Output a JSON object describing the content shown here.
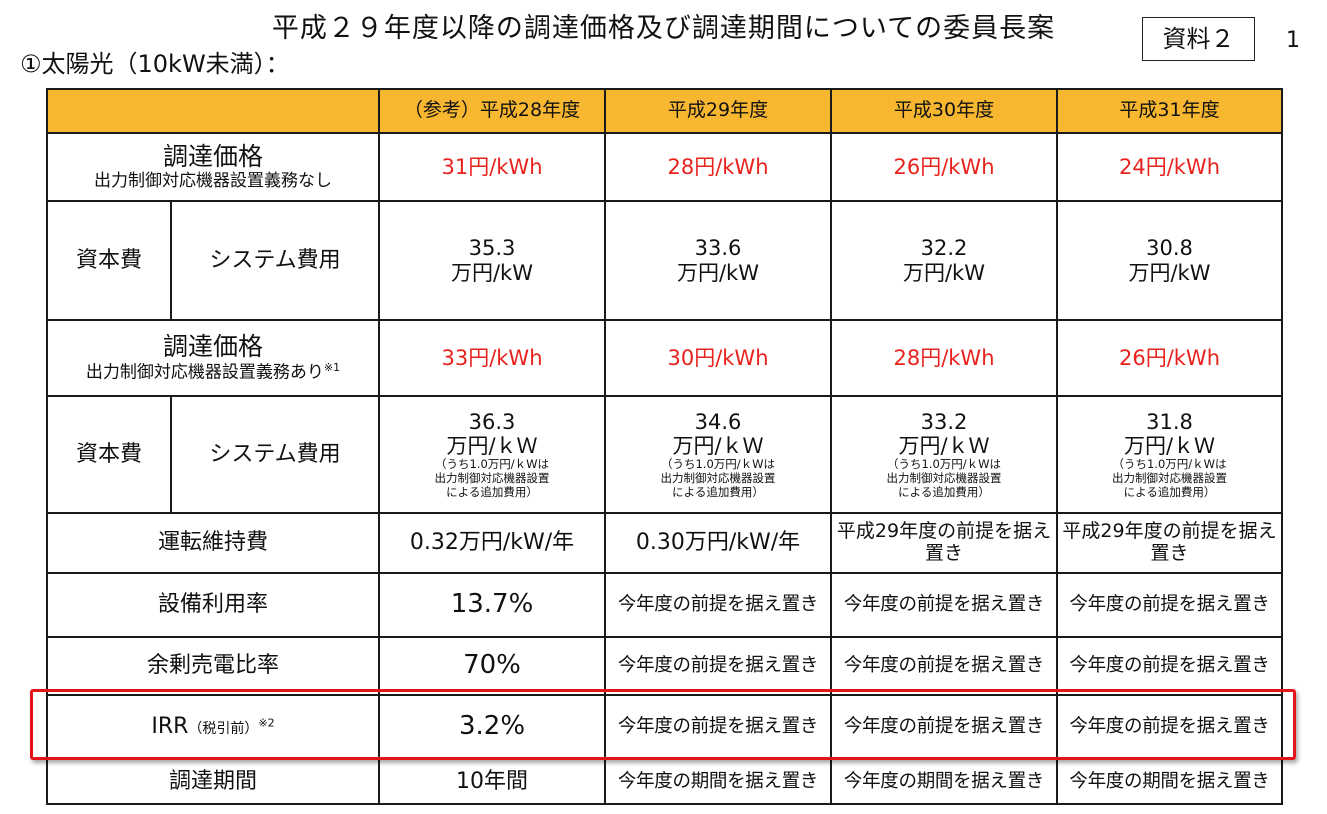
{
  "title": "平成２９年度以降の調達価格及び調達期間についての委員長案",
  "subtitle": "①太陽光（10kW未満）：",
  "doc_label": "資料２",
  "page_number": "1",
  "table": {
    "headers": [
      "（参考）平成28年度",
      "平成29年度",
      "平成30年度",
      "平成31年度"
    ],
    "price_no_ctrl": {
      "label": "調達価格",
      "sub": "出力制御対応機器設置義務なし",
      "values": [
        "31円/kWh",
        "28円/kWh",
        "26円/kWh",
        "24円/kWh"
      ]
    },
    "capex1": {
      "label": "資本費",
      "sub": "システム費用",
      "values": [
        "35.3",
        "33.6",
        "32.2",
        "30.8"
      ],
      "unit": "万円/kW"
    },
    "price_ctrl": {
      "label": "調達価格",
      "sub": "出力制御対応機器設置義務あり",
      "note_mark": "※1",
      "values": [
        "33円/kWh",
        "30円/kWh",
        "28円/kWh",
        "26円/kWh"
      ]
    },
    "capex2": {
      "label": "資本費",
      "sub": "システム費用",
      "values": [
        "36.3",
        "34.6",
        "33.2",
        "31.8"
      ],
      "unit": "万円/ｋＷ",
      "note_line1": "（うち1.0万円/ｋWは",
      "note_line2": "出力制御対応機器設置",
      "note_line3": "による追加費用）"
    },
    "om": {
      "label": "運転維持費",
      "values": [
        "0.32万円/kW/年",
        "0.30万円/kW/年",
        "平成29年度の前提を据え置き",
        "平成29年度の前提を据え置き"
      ]
    },
    "capacity_factor": {
      "label": "設備利用率",
      "values": [
        "13.7%",
        "今年度の前提を据え置き",
        "今年度の前提を据え置き",
        "今年度の前提を据え置き"
      ]
    },
    "surplus_ratio": {
      "label": "余剰売電比率",
      "values": [
        "70%",
        "今年度の前提を据え置き",
        "今年度の前提を据え置き",
        "今年度の前提を据え置き"
      ]
    },
    "irr": {
      "label": "IRR",
      "paren": "（税引前）",
      "note_mark": "※2",
      "values": [
        "3.2%",
        "今年度の前提を据え置き",
        "今年度の前提を据え置き",
        "今年度の前提を据え置き"
      ]
    },
    "period": {
      "label": "調達期間",
      "values": [
        "10年間",
        "今年度の期間を据え置き",
        "今年度の期間を据え置き",
        "今年度の期間を据え置き"
      ]
    }
  },
  "colors": {
    "header_bg": "#f7b730",
    "price_red": "#e8221d",
    "highlight_red": "#e3141a"
  }
}
